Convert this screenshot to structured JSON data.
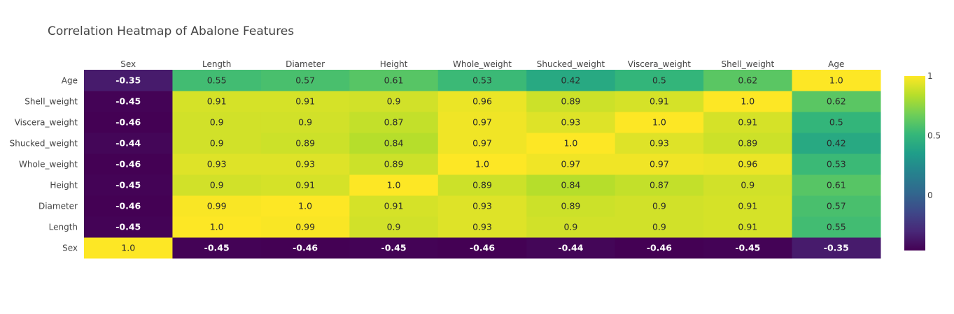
{
  "chart_data": {
    "type": "heatmap",
    "title": "Correlation Heatmap of Abalone Features",
    "x_categories": [
      "Sex",
      "Length",
      "Diameter",
      "Height",
      "Whole_weight",
      "Shucked_weight",
      "Viscera_weight",
      "Shell_weight",
      "Age"
    ],
    "y_categories": [
      "Sex",
      "Length",
      "Diameter",
      "Height",
      "Whole_weight",
      "Shucked_weight",
      "Viscera_weight",
      "Shell_weight",
      "Age"
    ],
    "values": [
      [
        1.0,
        -0.45,
        -0.46,
        -0.45,
        -0.46,
        -0.44,
        -0.46,
        -0.45,
        -0.35
      ],
      [
        -0.45,
        1.0,
        0.99,
        0.9,
        0.93,
        0.9,
        0.9,
        0.91,
        0.55
      ],
      [
        -0.46,
        0.99,
        1.0,
        0.91,
        0.93,
        0.89,
        0.9,
        0.91,
        0.57
      ],
      [
        -0.45,
        0.9,
        0.91,
        1.0,
        0.89,
        0.84,
        0.87,
        0.9,
        0.61
      ],
      [
        -0.46,
        0.93,
        0.93,
        0.89,
        1.0,
        0.97,
        0.97,
        0.96,
        0.53
      ],
      [
        -0.44,
        0.9,
        0.89,
        0.84,
        0.97,
        1.0,
        0.93,
        0.89,
        0.42
      ],
      [
        -0.46,
        0.9,
        0.9,
        0.87,
        0.97,
        0.93,
        1.0,
        0.91,
        0.5
      ],
      [
        -0.45,
        0.91,
        0.91,
        0.9,
        0.96,
        0.89,
        0.91,
        1.0,
        0.62
      ],
      [
        -0.35,
        0.55,
        0.57,
        0.61,
        0.53,
        0.42,
        0.5,
        0.62,
        1.0
      ]
    ],
    "value_labels": [
      [
        "1.0",
        "-0.45",
        "-0.46",
        "-0.45",
        "-0.46",
        "-0.44",
        "-0.46",
        "-0.45",
        "-0.35"
      ],
      [
        "-0.45",
        "1.0",
        "0.99",
        "0.9",
        "0.93",
        "0.9",
        "0.9",
        "0.91",
        "0.55"
      ],
      [
        "-0.46",
        "0.99",
        "1.0",
        "0.91",
        "0.93",
        "0.89",
        "0.9",
        "0.91",
        "0.57"
      ],
      [
        "-0.45",
        "0.9",
        "0.91",
        "1.0",
        "0.89",
        "0.84",
        "0.87",
        "0.9",
        "0.61"
      ],
      [
        "-0.46",
        "0.93",
        "0.93",
        "0.89",
        "1.0",
        "0.97",
        "0.97",
        "0.96",
        "0.53"
      ],
      [
        "-0.44",
        "0.9",
        "0.89",
        "0.84",
        "0.97",
        "1.0",
        "0.93",
        "0.89",
        "0.42"
      ],
      [
        "-0.46",
        "0.9",
        "0.9",
        "0.87",
        "0.97",
        "0.93",
        "1.0",
        "0.91",
        "0.5"
      ],
      [
        "-0.45",
        "0.91",
        "0.91",
        "0.9",
        "0.96",
        "0.89",
        "0.91",
        "1.0",
        "0.62"
      ],
      [
        "-0.35",
        "0.55",
        "0.57",
        "0.61",
        "0.53",
        "0.42",
        "0.5",
        "0.62",
        "1.0"
      ]
    ],
    "x_axis_position": "top",
    "colorscale": "Viridis",
    "zrange": [
      -0.46,
      1.0
    ],
    "colorbar": {
      "ticks": [
        0,
        0.5,
        1
      ],
      "tick_labels": [
        "0",
        "0.5",
        "1"
      ]
    },
    "grid": false
  }
}
